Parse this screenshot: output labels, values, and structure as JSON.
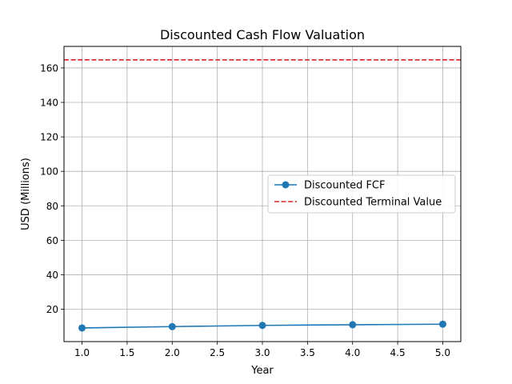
{
  "chart_data": {
    "type": "line",
    "title": "Discounted Cash Flow Valuation",
    "xlabel": "Year",
    "ylabel": "USD (Millions)",
    "xlim": [
      0.8,
      5.2
    ],
    "ylim": [
      1.2,
      172.5
    ],
    "x_ticks": [
      "1.0",
      "1.5",
      "2.0",
      "2.5",
      "3.0",
      "3.5",
      "4.0",
      "4.5",
      "5.0"
    ],
    "y_ticks": [
      "20",
      "40",
      "60",
      "80",
      "100",
      "120",
      "140",
      "160"
    ],
    "grid": true,
    "legend_position": "center-right",
    "series": [
      {
        "name": "Discounted FCF",
        "style": "solid-marker",
        "color": "#1f77b4",
        "x": [
          1,
          2,
          3,
          4,
          5
        ],
        "y": [
          9.1,
          9.9,
          10.6,
          11.0,
          11.3
        ]
      }
    ],
    "hlines": [
      {
        "name": "Discounted Terminal Value",
        "style": "dashed",
        "color": "#d62728",
        "y": 164.7
      }
    ]
  }
}
